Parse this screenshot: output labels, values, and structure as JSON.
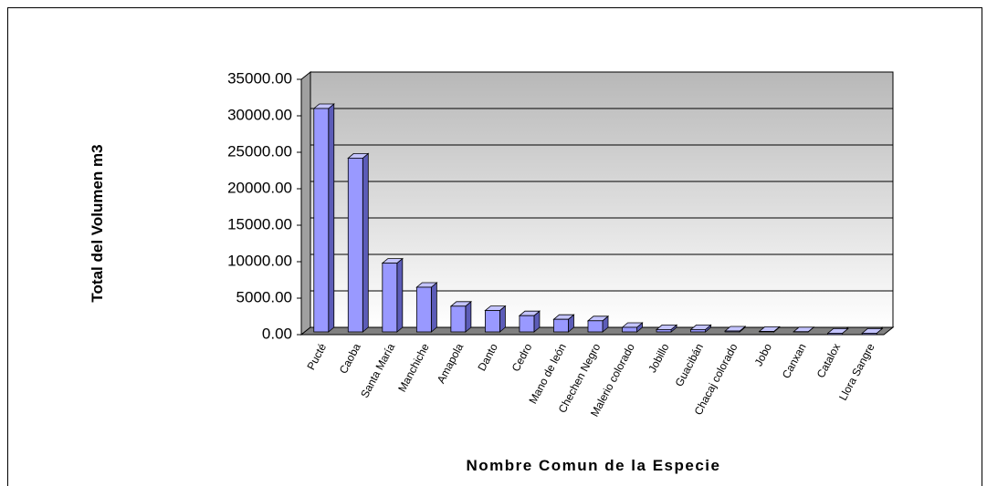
{
  "chart_data": {
    "type": "bar",
    "x_label": "Nombre Comun de la Especie",
    "y_label": "Total del Volumen m3",
    "categories": [
      "Pucté",
      "Caoba",
      "Santa María",
      "Manchiche",
      "Amapola",
      "Danto",
      "Cedro",
      "Mano de león",
      "Chechen Negro",
      "Malerio colorado",
      "Jobillo",
      "Guacibán",
      "Chacaj colorado",
      "Jobo",
      "Canxan",
      "Catalox",
      "Llora Sangre"
    ],
    "values": [
      31000,
      24200,
      9800,
      6500,
      3900,
      3300,
      2600,
      2100,
      1900,
      1000,
      700,
      700,
      500,
      450,
      400,
      200,
      200
    ],
    "color": "#9999ff",
    "ylim": [
      0,
      35000
    ],
    "yticks": [
      {
        "value": 0,
        "label": "0.00"
      },
      {
        "value": 5000,
        "label": "5000.00"
      },
      {
        "value": 10000,
        "label": "10000.00"
      },
      {
        "value": 15000,
        "label": "15000.00"
      },
      {
        "value": 20000,
        "label": "20000.00"
      },
      {
        "value": 25000,
        "label": "25000.00"
      },
      {
        "value": 30000,
        "label": "30000.00"
      },
      {
        "value": 35000,
        "label": "35000.00"
      }
    ],
    "grid": true
  }
}
